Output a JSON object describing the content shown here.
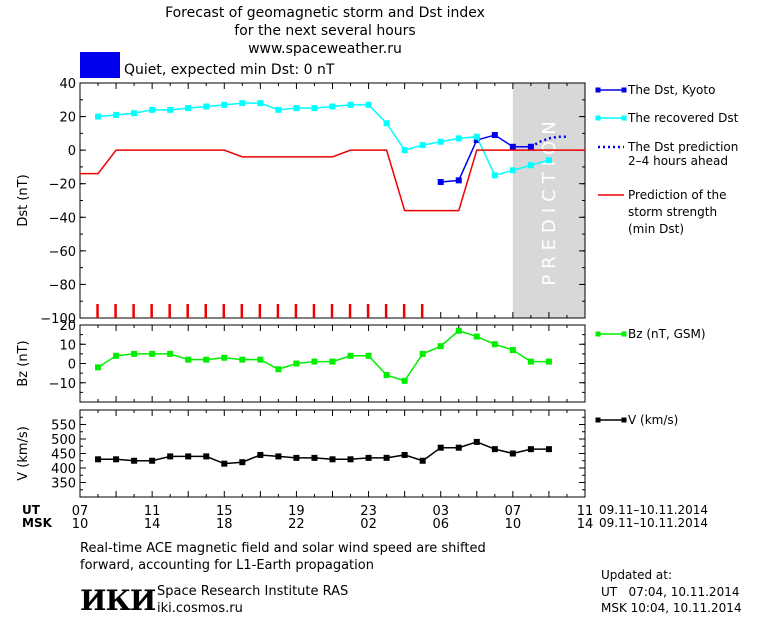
{
  "header": {
    "title_lines": [
      "Forecast of geomagnetic storm and Dst index",
      "for the next several hours",
      "www.spaceweather.ru"
    ],
    "status_color": "#0000ee",
    "status_text": "Quiet, expected min Dst: 0 nT"
  },
  "chart_data": [
    {
      "type": "line",
      "ylabel": "Dst (nT)",
      "ylim": [
        -100,
        40
      ],
      "yticks": [
        40,
        20,
        0,
        -20,
        -40,
        -60,
        -80,
        -100
      ],
      "xlim": [
        0,
        28
      ],
      "prediction_band": {
        "x": [
          24,
          28
        ],
        "label": "PREDICTION"
      },
      "series": [
        {
          "name": "The Dst, Kyoto",
          "color": "#0000ee",
          "marker": "square",
          "x": [
            20,
            21,
            22,
            23,
            24,
            25
          ],
          "y": [
            -19,
            -18,
            6,
            9,
            2,
            2
          ]
        },
        {
          "name": "The recovered Dst",
          "color": "#00ffff",
          "marker": "square",
          "x": [
            1,
            2,
            3,
            4,
            5,
            6,
            7,
            8,
            9,
            10,
            11,
            12,
            13,
            14,
            15,
            16,
            17,
            18,
            19,
            20,
            21,
            22,
            23,
            24,
            25,
            26
          ],
          "y": [
            20,
            21,
            22,
            24,
            24,
            25,
            26,
            27,
            28,
            28,
            24,
            25,
            25,
            26,
            27,
            27,
            16,
            0,
            3,
            5,
            7,
            8,
            -15,
            -12,
            -9,
            -6
          ]
        },
        {
          "name": "The Dst prediction 2–4 hours ahead",
          "color": "#0000ee",
          "style": "dotted",
          "x": [
            25,
            25.5,
            26,
            26.5,
            27
          ],
          "y": [
            2,
            5,
            7,
            8,
            8
          ]
        },
        {
          "name": "Prediction of the storm strength (min Dst)",
          "color": "#ee0000",
          "style": "step",
          "x": [
            0,
            1,
            2,
            8,
            9,
            14,
            15,
            17,
            18,
            21,
            22,
            28
          ],
          "y": [
            -14,
            -14,
            0,
            0,
            -4,
            -4,
            0,
            0,
            -36,
            -36,
            0,
            0
          ]
        }
      ],
      "legend": {
        "placement": "right"
      },
      "legend_labels": [
        "The Dst, Kyoto",
        "The recovered Dst",
        "The Dst prediction",
        "2–4 hours ahead",
        "Prediction of the",
        "storm strength",
        "(min Dst)"
      ],
      "red_tick_marks_x": [
        1,
        2,
        3,
        4,
        5,
        6,
        7,
        8,
        9,
        10,
        11,
        12,
        13,
        14,
        15,
        16,
        17,
        18,
        19
      ]
    },
    {
      "type": "line",
      "ylabel": "Bz (nT)",
      "ylim": [
        -20,
        20
      ],
      "yticks": [
        20,
        10,
        0,
        -10
      ],
      "series": [
        {
          "name": "Bz (nT, GSM)",
          "color": "#00ee00",
          "marker": "square",
          "x": [
            1,
            2,
            3,
            4,
            5,
            6,
            7,
            8,
            9,
            10,
            11,
            12,
            13,
            14,
            15,
            16,
            17,
            18,
            19,
            20,
            21,
            22,
            23,
            24,
            25,
            26
          ],
          "y": [
            -2,
            4,
            5,
            5,
            5,
            2,
            2,
            3,
            2,
            2,
            -3,
            0,
            1,
            1,
            4,
            4,
            -6,
            -9,
            5,
            9,
            17,
            14,
            10,
            7,
            1,
            1
          ]
        }
      ],
      "legend_label": "Bz (nT, GSM)"
    },
    {
      "type": "line",
      "ylabel": "V (km/s)",
      "ylim": [
        300,
        600
      ],
      "yticks": [
        550,
        500,
        450,
        400,
        350
      ],
      "series": [
        {
          "name": "V (km/s)",
          "color": "#000000",
          "marker": "square",
          "x": [
            1,
            2,
            3,
            4,
            5,
            6,
            7,
            8,
            9,
            10,
            11,
            12,
            13,
            14,
            15,
            16,
            17,
            18,
            19,
            20,
            21,
            22,
            23,
            24,
            25,
            26
          ],
          "y": [
            430,
            430,
            425,
            425,
            440,
            440,
            440,
            415,
            420,
            445,
            440,
            435,
            435,
            430,
            430,
            435,
            435,
            445,
            425,
            470,
            470,
            490,
            465,
            450,
            465,
            465
          ]
        }
      ],
      "legend_label": "V (km/s)"
    }
  ],
  "time_axis": {
    "ut_label": "UT",
    "msk_label": "MSK",
    "ut_ticks": [
      "07",
      "11",
      "15",
      "19",
      "23",
      "03",
      "07",
      "11"
    ],
    "msk_ticks": [
      "10",
      "14",
      "18",
      "22",
      "02",
      "06",
      "10",
      "14"
    ],
    "ut_range": "09.11–10.11.2014",
    "msk_range": "09.11–10.11.2014"
  },
  "footer": {
    "note_line1": "Real-time ACE magnetic field and solar wind speed are shifted",
    "note_line2": "forward, accounting for L1-Earth propagation",
    "logo_text": "ИКИ",
    "institute": "Space Research Institute RAS",
    "website": "iki.cosmos.ru",
    "updated_label": "Updated at:",
    "updated_ut": "UT   07:04, 10.11.2014",
    "updated_msk": "MSK 10:04, 10.11.2014"
  }
}
